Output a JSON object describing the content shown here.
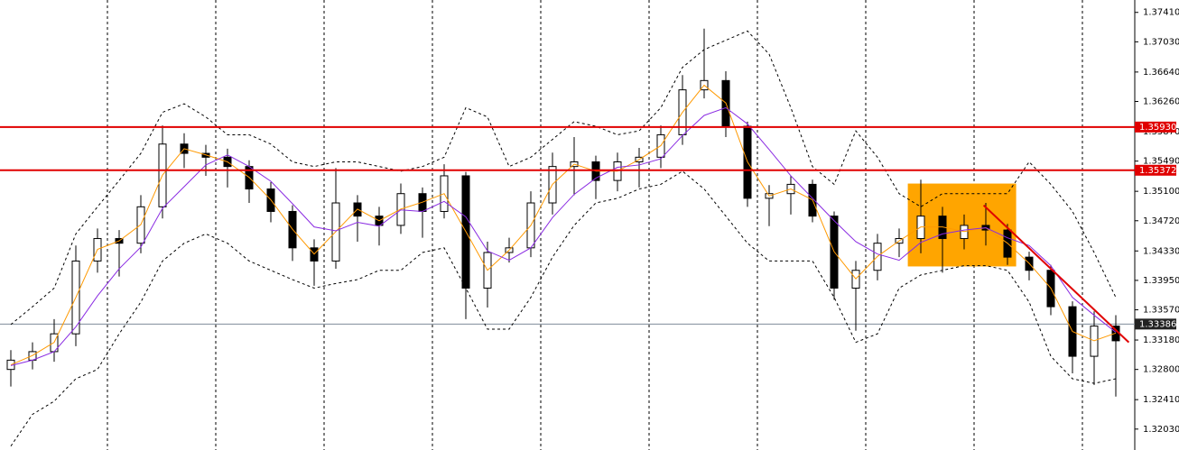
{
  "chart_data": {
    "type": "candlestick",
    "ylim": [
      1.3176,
      1.3757
    ],
    "yticks": [
      {
        "value": 1.3741,
        "label": "1.37410"
      },
      {
        "value": 1.3703,
        "label": "1.37030"
      },
      {
        "value": 1.3664,
        "label": "1.36640"
      },
      {
        "value": 1.3626,
        "label": "1.36260"
      },
      {
        "value": 1.3587,
        "label": "1.35870"
      },
      {
        "value": 1.3549,
        "label": "1.35490"
      },
      {
        "value": 1.351,
        "label": "1.35100"
      },
      {
        "value": 1.3472,
        "label": "1.34720"
      },
      {
        "value": 1.3433,
        "label": "1.34330"
      },
      {
        "value": 1.3395,
        "label": "1.33950"
      },
      {
        "value": 1.3357,
        "label": "1.33570"
      },
      {
        "value": 1.3318,
        "label": "1.33180"
      },
      {
        "value": 1.328,
        "label": "1.32800"
      },
      {
        "value": 1.3241,
        "label": "1.32410"
      },
      {
        "value": 1.3203,
        "label": "1.32030"
      }
    ],
    "up_color": "#ffffff",
    "down_color": "#000000",
    "open": [
      1.328,
      1.3292,
      1.3303,
      1.3326,
      1.342,
      1.3449,
      1.3443,
      1.349,
      1.3571,
      1.3559,
      1.3554,
      1.3542,
      1.3513,
      1.3484,
      1.3437,
      1.342,
      1.3495,
      1.3478,
      1.3466,
      1.3507,
      1.3484,
      1.353,
      1.3385,
      1.3431,
      1.3437,
      1.3495,
      1.3542,
      1.3548,
      1.3524,
      1.3548,
      1.3554,
      1.3583,
      1.3641,
      1.3653,
      1.3594,
      1.3501,
      1.3507,
      1.3519,
      1.3478,
      1.3385,
      1.3408,
      1.3443,
      1.3449,
      1.3478,
      1.3449,
      1.3466,
      1.346,
      1.3425,
      1.3408,
      1.3361,
      1.3297,
      1.3336
    ],
    "high": [
      1.3305,
      1.3315,
      1.3345,
      1.344,
      1.3462,
      1.346,
      1.3505,
      1.3595,
      1.3585,
      1.357,
      1.3565,
      1.355,
      1.3522,
      1.3492,
      1.3448,
      1.354,
      1.3505,
      1.349,
      1.352,
      1.3515,
      1.3545,
      1.3535,
      1.3445,
      1.345,
      1.351,
      1.356,
      1.358,
      1.3556,
      1.356,
      1.3566,
      1.3595,
      1.366,
      1.372,
      1.3665,
      1.36,
      1.3518,
      1.353,
      1.3525,
      1.3484,
      1.342,
      1.3455,
      1.3462,
      1.3525,
      1.349,
      1.348,
      1.3495,
      1.3468,
      1.3432,
      1.3415,
      1.3368,
      1.3355,
      1.335
    ],
    "low": [
      1.3258,
      1.328,
      1.329,
      1.331,
      1.3405,
      1.34,
      1.343,
      1.3475,
      1.354,
      1.353,
      1.3515,
      1.3495,
      1.347,
      1.342,
      1.3388,
      1.341,
      1.3445,
      1.344,
      1.3455,
      1.345,
      1.3475,
      1.3345,
      1.336,
      1.3418,
      1.3425,
      1.348,
      1.3505,
      1.35,
      1.351,
      1.3515,
      1.354,
      1.357,
      1.363,
      1.358,
      1.349,
      1.3465,
      1.348,
      1.347,
      1.337,
      1.333,
      1.3395,
      1.3425,
      1.343,
      1.3405,
      1.3435,
      1.344,
      1.3415,
      1.3395,
      1.335,
      1.3275,
      1.326,
      1.3245
    ],
    "close": [
      1.3292,
      1.3303,
      1.3326,
      1.342,
      1.3449,
      1.3443,
      1.349,
      1.3571,
      1.3559,
      1.3554,
      1.3542,
      1.3513,
      1.3484,
      1.3437,
      1.342,
      1.3495,
      1.3478,
      1.3466,
      1.3507,
      1.3484,
      1.353,
      1.3385,
      1.3431,
      1.3437,
      1.3495,
      1.3542,
      1.3548,
      1.3524,
      1.3548,
      1.3554,
      1.3583,
      1.3641,
      1.3653,
      1.3594,
      1.3501,
      1.3507,
      1.3519,
      1.3478,
      1.3385,
      1.3408,
      1.3443,
      1.3449,
      1.3478,
      1.3449,
      1.3466,
      1.346,
      1.3425,
      1.3408,
      1.3361,
      1.3297,
      1.3336,
      1.3317
    ],
    "series": [
      {
        "color": "#000000",
        "dashed": true,
        "values": [
          1.3338,
          1.3361,
          1.3385,
          1.3455,
          1.349,
          1.3524,
          1.3559,
          1.3612,
          1.3623,
          1.3606,
          1.3583,
          1.3583,
          1.3571,
          1.3548,
          1.3542,
          1.3548,
          1.3548,
          1.3542,
          1.3536,
          1.3542,
          1.3554,
          1.3618,
          1.3606,
          1.3542,
          1.3554,
          1.3577,
          1.36,
          1.3594,
          1.3583,
          1.3588,
          1.3618,
          1.367,
          1.3693,
          1.3705,
          1.3717,
          1.3687,
          1.3618,
          1.3542,
          1.3519,
          1.3588,
          1.3554,
          1.3507,
          1.349,
          1.3507,
          1.3507,
          1.3507,
          1.3507,
          1.3548,
          1.3519,
          1.3484,
          1.3431,
          1.3373
        ]
      },
      {
        "color": "#000000",
        "dashed": true,
        "values": [
          1.3181,
          1.3222,
          1.3239,
          1.3268,
          1.328,
          1.3326,
          1.3367,
          1.342,
          1.3443,
          1.3455,
          1.3443,
          1.342,
          1.3408,
          1.3396,
          1.3385,
          1.3391,
          1.3396,
          1.3408,
          1.3408,
          1.3431,
          1.3437,
          1.3385,
          1.3332,
          1.3332,
          1.3373,
          1.3425,
          1.3466,
          1.3495,
          1.3501,
          1.3513,
          1.3519,
          1.3536,
          1.3513,
          1.3478,
          1.3443,
          1.342,
          1.342,
          1.342,
          1.3373,
          1.3315,
          1.3326,
          1.3385,
          1.3402,
          1.3408,
          1.3414,
          1.3414,
          1.3408,
          1.3367,
          1.3297,
          1.3268,
          1.3262,
          1.3268
        ]
      },
      {
        "color": "#ff9900",
        "dashed": false,
        "values": [
          1.3286,
          1.3298,
          1.3315,
          1.3373,
          1.3435,
          1.3446,
          1.3467,
          1.3531,
          1.3565,
          1.3557,
          1.3548,
          1.3528,
          1.3499,
          1.3461,
          1.3429,
          1.3458,
          1.3487,
          1.3472,
          1.3487,
          1.3496,
          1.3507,
          1.3458,
          1.3408,
          1.3434,
          1.3466,
          1.3519,
          1.3545,
          1.3536,
          1.3536,
          1.3551,
          1.3569,
          1.3612,
          1.3647,
          1.3624,
          1.3548,
          1.3504,
          1.3513,
          1.3499,
          1.3432,
          1.3397,
          1.3426,
          1.3446,
          1.3464,
          1.3464,
          1.3458,
          1.3463,
          1.3443,
          1.3417,
          1.3385,
          1.3329,
          1.3317,
          1.3327
        ]
      },
      {
        "color": "#8a2be2",
        "dashed": false,
        "values": [
          1.3285,
          1.3292,
          1.3303,
          1.3335,
          1.3375,
          1.341,
          1.3438,
          1.3488,
          1.3516,
          1.3544,
          1.3557,
          1.3542,
          1.3523,
          1.3494,
          1.3464,
          1.3459,
          1.347,
          1.3465,
          1.3486,
          1.3484,
          1.3497,
          1.3477,
          1.3433,
          1.3421,
          1.3437,
          1.3476,
          1.3506,
          1.3527,
          1.3541,
          1.3544,
          1.3552,
          1.3582,
          1.3608,
          1.3618,
          1.3597,
          1.3564,
          1.353,
          1.3501,
          1.3472,
          1.3445,
          1.3429,
          1.3421,
          1.3444,
          1.3455,
          1.346,
          1.3463,
          1.345,
          1.344,
          1.3414,
          1.3373,
          1.335,
          1.3328
        ]
      }
    ],
    "levels": [
      {
        "value": 1.3593,
        "label": "1.35930",
        "color": "#e00000"
      },
      {
        "value": 1.35372,
        "label": "1.35372",
        "color": "#e00000"
      }
    ],
    "current_price": {
      "value": 1.33386,
      "label": "1.33386",
      "color": "#7f8c99"
    },
    "box": {
      "x": [
        41.4,
        46.4
      ],
      "ylim": [
        1.3413,
        1.352
      ],
      "color": "#ffa500"
    },
    "trend_line": {
      "x": [
        44.9,
        51.6
      ],
      "y": [
        1.3492,
        1.3315
      ],
      "color": "#e00000"
    },
    "grid": true
  }
}
